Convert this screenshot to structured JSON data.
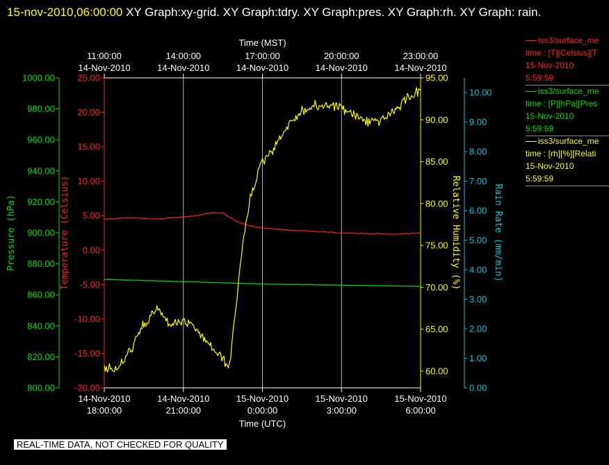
{
  "header": {
    "timestamp": "15-nov-2010,06:00:00",
    "title_rest": "  XY Graph:xy-grid.  XY Graph:tdry.  XY Graph:pres.  XY Graph:rh.  XY Graph: rain."
  },
  "footer": {
    "note": "REAL-TIME DATA, NOT CHECKED FOR QUALITY"
  },
  "legend": [
    {
      "name": "iss3/surface_me",
      "units": "time : [T][Celsius][T",
      "date": "15-Nov-2010",
      "time": "5:59:59",
      "color": "#ff2020"
    },
    {
      "name": "iss3/surface_me",
      "units": "time : [P][hPa][Pres",
      "date": "15-Nov-2010",
      "time": "5:59:59",
      "color": "#00e000"
    },
    {
      "name": "iss3/surface_me",
      "units": "time : [rh][%][Relati",
      "date": "15-Nov-2010",
      "time": "5:59:59",
      "color": "#ffff00"
    }
  ],
  "chart_data": {
    "type": "line",
    "grid": true,
    "colors": {
      "background": "#000000",
      "frame": "#ffffff",
      "grid": "#b4b4b4"
    },
    "x_top": {
      "label": "Time (MST)",
      "ticks": [
        {
          "line1": "11:00:00",
          "line2": "14-Nov-2010"
        },
        {
          "line1": "14:00:00",
          "line2": "14-Nov-2010"
        },
        {
          "line1": "17:00:00",
          "line2": "14-Nov-2010"
        },
        {
          "line1": "20:00:00",
          "line2": "14-Nov-2010"
        },
        {
          "line1": "23:00:00",
          "line2": "14-Nov-2010"
        }
      ]
    },
    "x_bottom": {
      "label": "Time (UTC)",
      "range": [
        "2010-11-14T18:00:00",
        "2010-11-15T06:00:00"
      ],
      "ticks": [
        {
          "line1": "14-Nov-2010",
          "line2": "18:00:00"
        },
        {
          "line1": "14-Nov-2010",
          "line2": "21:00:00"
        },
        {
          "line1": "15-Nov-2010",
          "line2": "0:00:00"
        },
        {
          "line1": "15-Nov-2010",
          "line2": "3:00:00"
        },
        {
          "line1": "15-Nov-2010",
          "line2": "6:00:00"
        }
      ]
    },
    "y_axes": [
      {
        "id": "pressure",
        "label": "Pressure (hPa)",
        "color": "#00e000",
        "range": [
          800,
          1000
        ],
        "ticks": [
          "800.00",
          "820.00",
          "840.00",
          "860.00",
          "880.00",
          "900.00",
          "920.00",
          "940.00",
          "960.00",
          "980.00",
          "1000.00"
        ]
      },
      {
        "id": "temperature",
        "label": "Temperature (Celsius)",
        "color": "#ff2020",
        "range": [
          -20,
          25
        ],
        "ticks": [
          "-20.00",
          "-15.00",
          "-10.00",
          "-5.00",
          "0.00",
          "5.00",
          "10.00",
          "15.00",
          "20.00",
          "25.00"
        ]
      },
      {
        "id": "humidity",
        "label": "Relative Humidity (%)",
        "color": "#ffff00",
        "range": [
          58,
          95
        ],
        "ticks": [
          "60.00",
          "65.00",
          "70.00",
          "75.00",
          "80.00",
          "85.00",
          "90.00",
          "95.00"
        ]
      },
      {
        "id": "rain",
        "label": "Rain Rate (mm/min)",
        "color": "#00c8d8",
        "range": [
          0,
          10.5
        ],
        "ticks": [
          "0.00",
          "1.00",
          "2.00",
          "3.00",
          "4.00",
          "5.00",
          "6.00",
          "7.00",
          "8.00",
          "9.00",
          "10.00"
        ]
      }
    ],
    "series": [
      {
        "name": "Temperature",
        "axis": "temperature",
        "color": "#ff2020",
        "jitter": 0.06,
        "x": [
          "2010-11-14T18:00",
          "2010-11-14T19:00",
          "2010-11-14T20:00",
          "2010-11-14T21:00",
          "2010-11-14T21:30",
          "2010-11-14T22:00",
          "2010-11-14T22:30",
          "2010-11-14T23:00",
          "2010-11-14T23:30",
          "2010-11-15T00:00",
          "2010-11-15T01:00",
          "2010-11-15T02:00",
          "2010-11-15T03:00",
          "2010-11-15T04:00",
          "2010-11-15T05:00",
          "2010-11-15T06:00"
        ],
        "y": [
          4.5,
          4.7,
          4.5,
          4.8,
          5.0,
          5.4,
          5.4,
          4.2,
          3.5,
          3.2,
          2.9,
          2.7,
          2.5,
          2.4,
          2.3,
          2.5
        ]
      },
      {
        "name": "Pressure",
        "axis": "pressure",
        "color": "#00e000",
        "jitter": 0.1,
        "x": [
          "2010-11-14T18:00",
          "2010-11-14T20:00",
          "2010-11-14T22:00",
          "2010-11-15T00:00",
          "2010-11-15T02:00",
          "2010-11-15T04:00",
          "2010-11-15T06:00"
        ],
        "y": [
          870.0,
          869.0,
          868.0,
          867.0,
          866.5,
          866.0,
          865.5
        ]
      },
      {
        "name": "Relative Humidity",
        "axis": "humidity",
        "color": "#ffff00",
        "jitter": 0.55,
        "x": [
          "2010-11-14T18:00",
          "2010-11-14T18:30",
          "2010-11-14T19:00",
          "2010-11-14T19:30",
          "2010-11-14T20:00",
          "2010-11-14T20:30",
          "2010-11-14T21:00",
          "2010-11-14T21:30",
          "2010-11-14T22:00",
          "2010-11-14T22:30",
          "2010-11-14T22:45",
          "2010-11-14T23:00",
          "2010-11-14T23:15",
          "2010-11-14T23:30",
          "2010-11-14T23:45",
          "2010-11-15T00:00",
          "2010-11-15T00:30",
          "2010-11-15T01:00",
          "2010-11-15T01:30",
          "2010-11-15T02:00",
          "2010-11-15T02:30",
          "2010-11-15T03:00",
          "2010-11-15T03:30",
          "2010-11-15T04:00",
          "2010-11-15T04:30",
          "2010-11-15T05:00",
          "2010-11-15T05:30",
          "2010-11-15T06:00"
        ],
        "y": [
          60.5,
          60.2,
          62.5,
          65.5,
          67.5,
          65.5,
          66.0,
          65.0,
          63.0,
          61.5,
          60.5,
          68.0,
          75.0,
          80.0,
          83.0,
          85.0,
          87.0,
          89.5,
          91.0,
          91.6,
          91.8,
          91.5,
          90.5,
          89.8,
          90.0,
          91.0,
          92.5,
          93.5
        ]
      }
    ]
  }
}
